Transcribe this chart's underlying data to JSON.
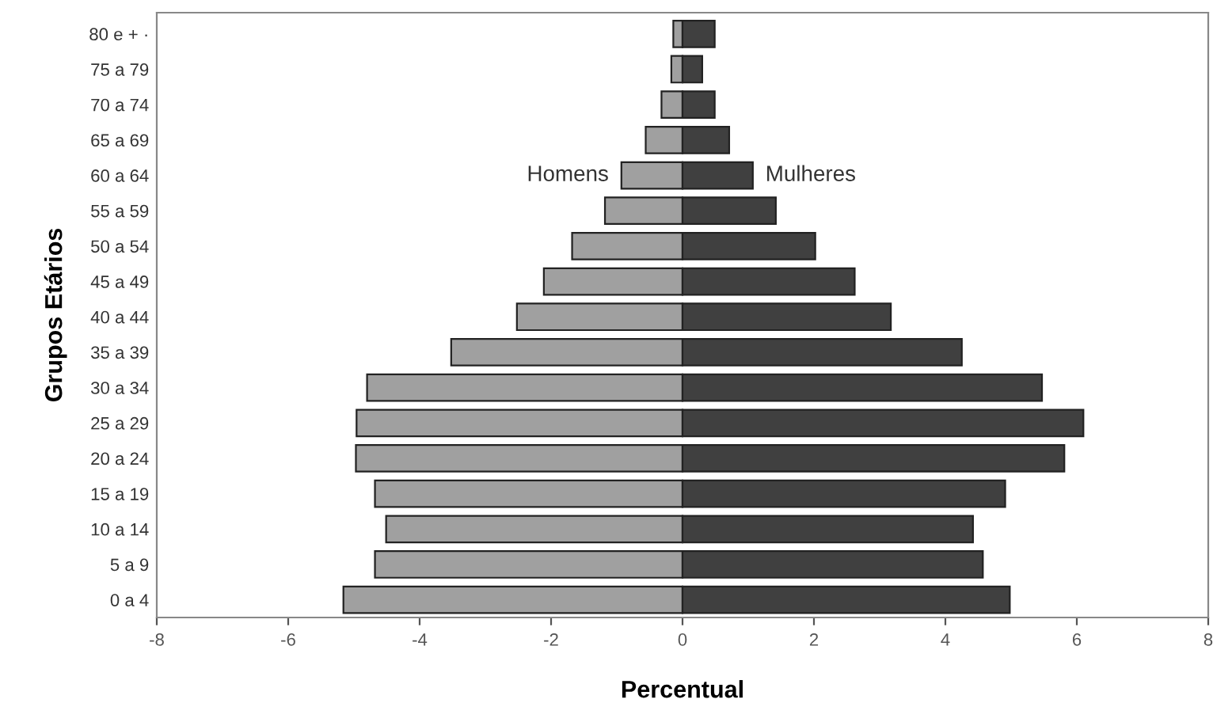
{
  "chart_data": {
    "type": "bar",
    "orientation": "horizontal",
    "stacked": true,
    "xlabel": "Percentual",
    "ylabel": "Grupos Etários",
    "categories": [
      "80 e + ·",
      "75 a 79",
      "70 a 74",
      "65 a 69",
      "60 a 64",
      "55 a 59",
      "50 a 54",
      "45 a 49",
      "40 a 44",
      "35 a 39",
      "30 a 34",
      "25 a 29",
      "20 a 24",
      "15 a 19",
      "10 a 14",
      "5 a 9",
      "0 a 4"
    ],
    "series": [
      {
        "name": "Homens",
        "color": "#a0a0a0",
        "values": [
          -0.14,
          -0.17,
          -0.32,
          -0.56,
          -0.93,
          -1.18,
          -1.68,
          -2.11,
          -2.52,
          -3.52,
          -4.8,
          -4.96,
          -4.97,
          -4.68,
          -4.51,
          -4.68,
          -5.16
        ]
      },
      {
        "name": "Mulheres",
        "color": "#404040",
        "values": [
          0.49,
          0.3,
          0.49,
          0.71,
          1.07,
          1.42,
          2.02,
          2.62,
          3.17,
          4.25,
          5.47,
          6.1,
          5.81,
          4.91,
          4.42,
          4.57,
          4.98
        ]
      }
    ],
    "xlim": [
      -8,
      8
    ],
    "xticks": [
      -8,
      -6,
      -4,
      -2,
      0,
      2,
      4,
      6,
      8
    ],
    "grid": false,
    "legend": false
  }
}
